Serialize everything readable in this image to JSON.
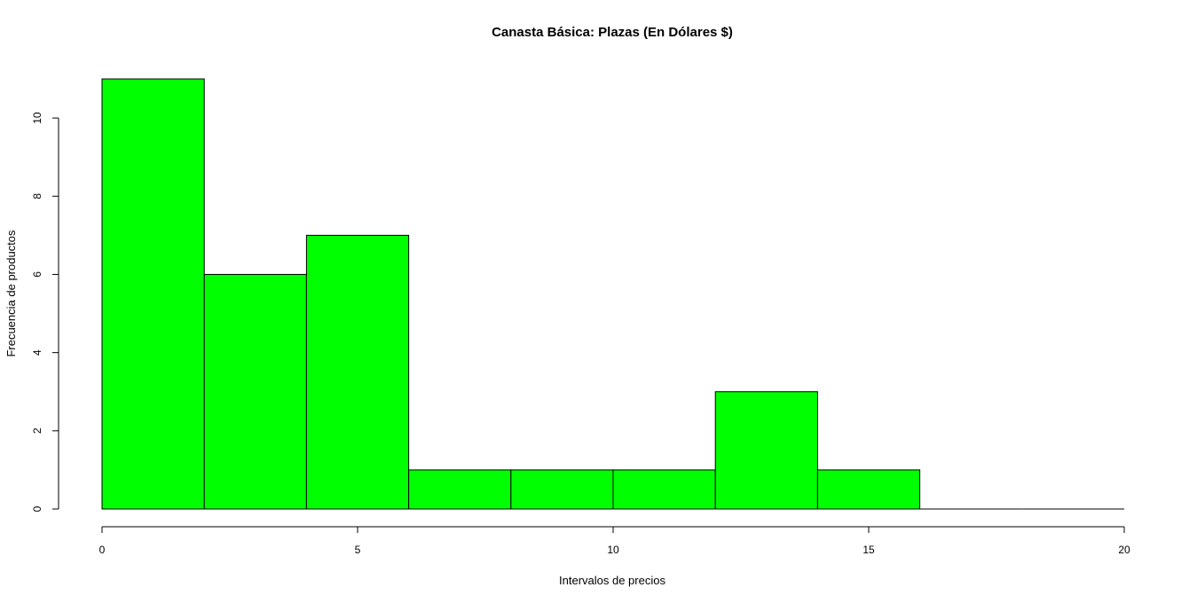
{
  "chart_data": {
    "type": "bar",
    "subtype": "histogram",
    "title": "Canasta Básica: Plazas (En Dólares $)",
    "xlabel": "Intervalos de precios",
    "ylabel": "Frecuencia de productos",
    "bins": [
      {
        "from": 0,
        "to": 2,
        "count": 11
      },
      {
        "from": 2,
        "to": 4,
        "count": 6
      },
      {
        "from": 4,
        "to": 6,
        "count": 7
      },
      {
        "from": 6,
        "to": 8,
        "count": 1
      },
      {
        "from": 8,
        "to": 10,
        "count": 1
      },
      {
        "from": 10,
        "to": 12,
        "count": 1
      },
      {
        "from": 12,
        "to": 14,
        "count": 3
      },
      {
        "from": 14,
        "to": 16,
        "count": 1
      },
      {
        "from": 16,
        "to": 18,
        "count": 0
      },
      {
        "from": 18,
        "to": 20,
        "count": 0
      }
    ],
    "xlim": [
      0,
      20
    ],
    "ylim": [
      0,
      11
    ],
    "x_ticks": [
      "0",
      "5",
      "10",
      "15",
      "20"
    ],
    "y_ticks": [
      "0",
      "2",
      "4",
      "6",
      "8",
      "10"
    ],
    "grid": false,
    "bar_color": "#00ff00",
    "border_color": "#000000"
  }
}
